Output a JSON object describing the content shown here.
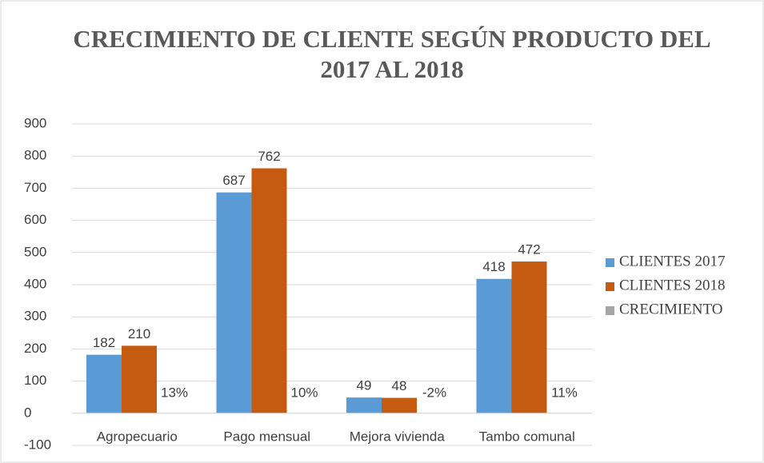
{
  "chart_data": {
    "type": "bar",
    "title": "CRECIMIENTO DE CLIENTE SEGÚN PRODUCTO DEL 2017 AL 2018",
    "categories": [
      "Agropecuario",
      "Pago mensual",
      "Mejora vivienda",
      "Tambo comunal"
    ],
    "series": [
      {
        "name": "CLIENTES 2017",
        "color": "#5b9bd5",
        "values": [
          182,
          687,
          49,
          418
        ]
      },
      {
        "name": "CLIENTES 2018",
        "color": "#c55a11",
        "values": [
          210,
          762,
          48,
          472
        ]
      },
      {
        "name": "CRECIMIENTO",
        "color": "#a5a5a5",
        "values": [
          0.13,
          0.1,
          -0.02,
          0.11
        ],
        "value_labels": [
          "13%",
          "10%",
          "-2%",
          "11%"
        ]
      }
    ],
    "ylim": [
      -100,
      900
    ],
    "yticks": [
      -100,
      0,
      100,
      200,
      300,
      400,
      500,
      600,
      700,
      800,
      900
    ],
    "grid": true,
    "legend": "right"
  }
}
